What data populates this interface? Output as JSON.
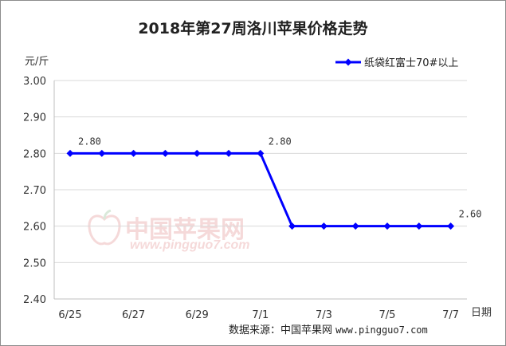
{
  "chart_data": {
    "type": "line",
    "title": "2018年第27周洛川苹果价格走势",
    "ylabel": "元/斤",
    "xlabel": "日期",
    "ylim": [
      2.4,
      3.0
    ],
    "y_ticks": [
      "3.00",
      "2.90",
      "2.80",
      "2.70",
      "2.60",
      "2.50",
      "2.40"
    ],
    "x": [
      "6/25",
      "6/26",
      "6/27",
      "6/28",
      "6/29",
      "6/30",
      "7/1",
      "7/2",
      "7/3",
      "7/4",
      "7/5",
      "7/6",
      "7/7"
    ],
    "x_tick_labels": [
      "6/25",
      "6/27",
      "6/29",
      "7/1",
      "7/3",
      "7/5",
      "7/7"
    ],
    "series": [
      {
        "name": "纸袋红富士70#以上",
        "values": [
          2.8,
          2.8,
          2.8,
          2.8,
          2.8,
          2.8,
          2.8,
          2.6,
          2.6,
          2.6,
          2.6,
          2.6,
          2.6
        ],
        "color": "#0000ff"
      }
    ],
    "data_labels": [
      {
        "index": 0,
        "text": "2.80"
      },
      {
        "index": 6,
        "text": "2.80"
      },
      {
        "index": 12,
        "text": "2.60"
      }
    ],
    "grid": true,
    "legend": "top-right"
  },
  "watermark": {
    "cn": "中国苹果网",
    "en": "www.pingguo7.com"
  },
  "source": {
    "label": "数据来源：中国苹果网",
    "url": "www.pingguo7.com"
  }
}
